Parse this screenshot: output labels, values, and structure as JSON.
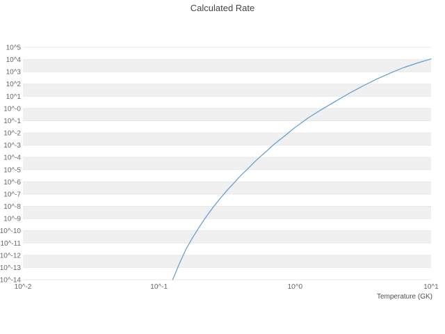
{
  "chart_data": {
    "type": "line",
    "title": "Calculated Rate",
    "xlabel": "Temperature (GK)",
    "ylabel": "",
    "x_scale": "log",
    "y_scale": "log",
    "xlim": [
      0.01,
      10
    ],
    "ylim": [
      1e-14,
      100000.0
    ],
    "grid": "horizontal-bands",
    "legend": "none",
    "x_tick_labels": [
      "10^-2",
      "10^-1",
      "10^0",
      "10^1"
    ],
    "y_tick_labels": [
      "10^5",
      "10^4",
      "10^3",
      "10^2",
      "10^1",
      "10^-0",
      "10^-1",
      "10^-2",
      "10^-3",
      "10^-4",
      "10^-5",
      "10^-6",
      "10^-7",
      "10^-8",
      "10^-9",
      "10^-10",
      "10^-11",
      "10^-12",
      "10^-13",
      "10^-14"
    ],
    "line_color": "#5b9bd5",
    "band_color": "#f0f0f0",
    "grid_color": "#e8e8e8",
    "series": [
      {
        "name": "calculated-rate",
        "x": [
          0.126,
          0.141,
          0.158,
          0.178,
          0.2,
          0.224,
          0.251,
          0.282,
          0.316,
          0.355,
          0.398,
          0.447,
          0.501,
          0.562,
          0.631,
          0.708,
          0.794,
          0.891,
          1.0,
          1.259,
          1.585,
          1.995,
          2.512,
          3.162,
          3.981,
          5.012,
          6.31,
          7.943,
          10.0
        ],
        "y": [
          1e-14,
          2e-13,
          3.2e-12,
          3.2e-11,
          2.5e-10,
          1.6e-09,
          8.9e-09,
          4.5e-08,
          2e-07,
          7.9e-07,
          3.2e-06,
          1.1e-05,
          4e-05,
          0.00013,
          0.0004,
          0.0013,
          0.0035,
          0.01,
          0.028,
          0.18,
          0.89,
          4.0,
          17.8,
          70.8,
          251,
          794,
          2240,
          5250,
          11200
        ]
      }
    ]
  }
}
